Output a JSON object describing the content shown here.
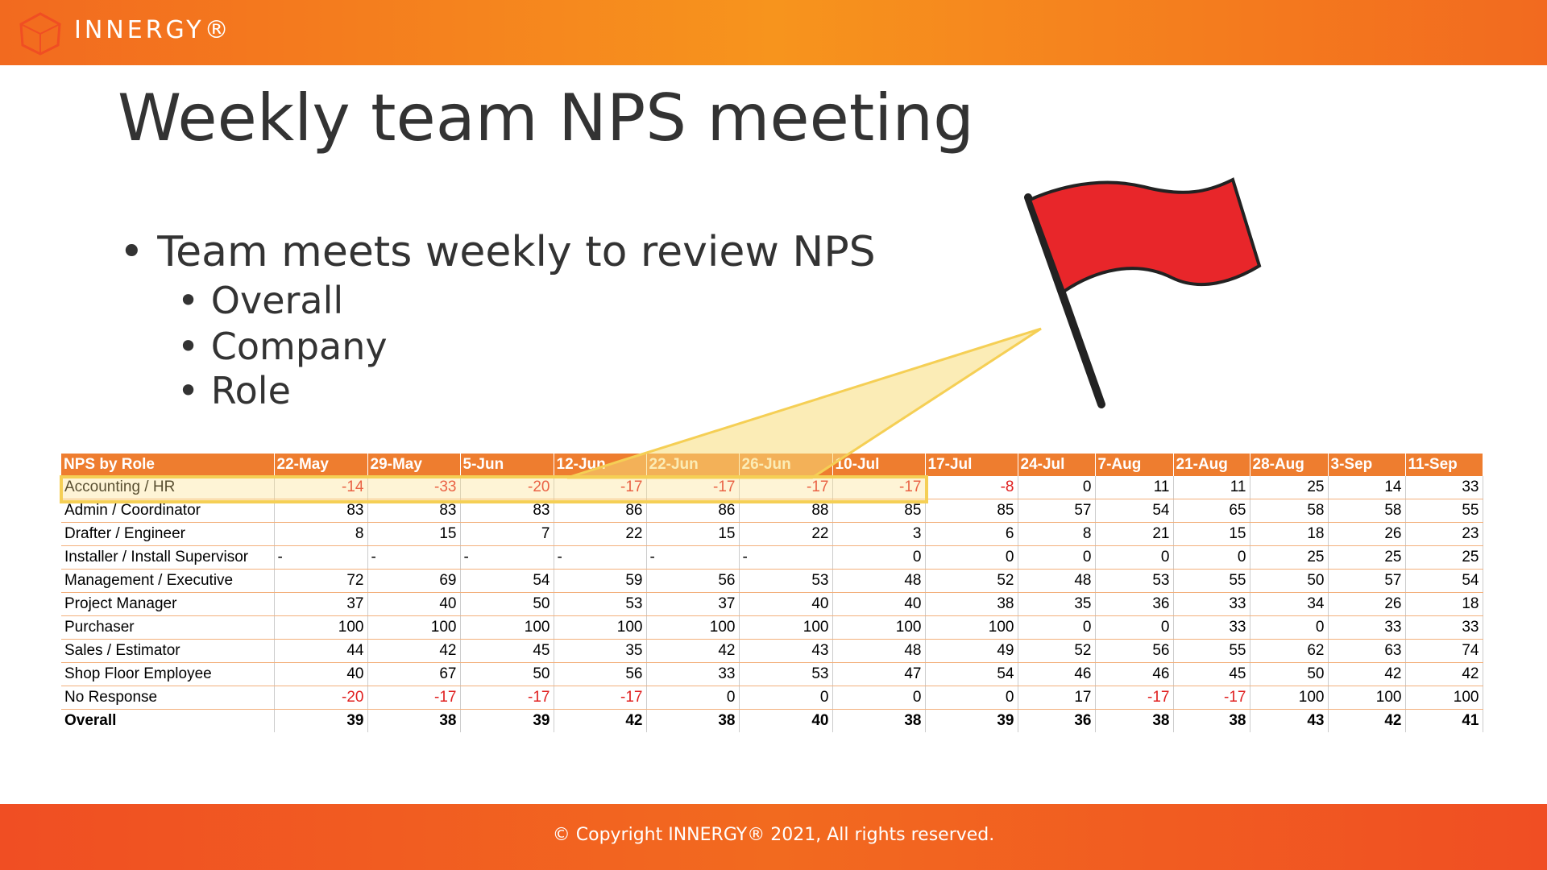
{
  "header": {
    "logo": "INNERGY®"
  },
  "title": "Weekly team NPS meeting",
  "bullets": [
    {
      "text": "Team meets weekly to review NPS",
      "children": [
        "Overall",
        "Company",
        "Role"
      ]
    }
  ],
  "table": {
    "columns": [
      "NPS by Role",
      "22-May",
      "29-May",
      "5-Jun",
      "12-Jun",
      "22-Jun",
      "26-Jun",
      "10-Jul",
      "17-Jul",
      "24-Jul",
      "7-Aug",
      "21-Aug",
      "28-Aug",
      "3-Sep",
      "11-Sep"
    ],
    "rows": [
      [
        "Accounting / HR",
        -14,
        -33,
        -20,
        -17,
        -17,
        -17,
        -17,
        -8,
        0,
        11,
        11,
        25,
        14,
        33
      ],
      [
        "Admin / Coordinator",
        83,
        83,
        83,
        86,
        86,
        88,
        85,
        85,
        57,
        54,
        65,
        58,
        58,
        55
      ],
      [
        "Drafter / Engineer",
        8,
        15,
        7,
        22,
        15,
        22,
        3,
        6,
        8,
        21,
        15,
        18,
        26,
        23
      ],
      [
        "Installer / Install Supervisor",
        "-",
        "-",
        "-",
        "-",
        "-",
        "-",
        0,
        0,
        0,
        0,
        0,
        25,
        25,
        25
      ],
      [
        "Management / Executive",
        72,
        69,
        54,
        59,
        56,
        53,
        48,
        52,
        48,
        53,
        55,
        50,
        57,
        54
      ],
      [
        "Project Manager",
        37,
        40,
        50,
        53,
        37,
        40,
        40,
        38,
        35,
        36,
        33,
        34,
        26,
        18
      ],
      [
        "Purchaser",
        100,
        100,
        100,
        100,
        100,
        100,
        100,
        100,
        0,
        0,
        33,
        0,
        33,
        33
      ],
      [
        "Sales / Estimator",
        44,
        42,
        45,
        35,
        42,
        43,
        48,
        49,
        52,
        56,
        55,
        62,
        63,
        74
      ],
      [
        "Shop Floor Employee",
        40,
        67,
        50,
        56,
        33,
        53,
        47,
        54,
        46,
        46,
        45,
        50,
        42,
        42
      ],
      [
        "No Response",
        -20,
        -17,
        -17,
        -17,
        0,
        0,
        0,
        0,
        17,
        -17,
        -17,
        100,
        100,
        100
      ],
      [
        "Overall",
        39,
        38,
        39,
        42,
        38,
        40,
        38,
        39,
        36,
        38,
        38,
        43,
        42,
        41
      ]
    ]
  },
  "footer": "© Copyright INNERGY® 2021, All rights reserved."
}
